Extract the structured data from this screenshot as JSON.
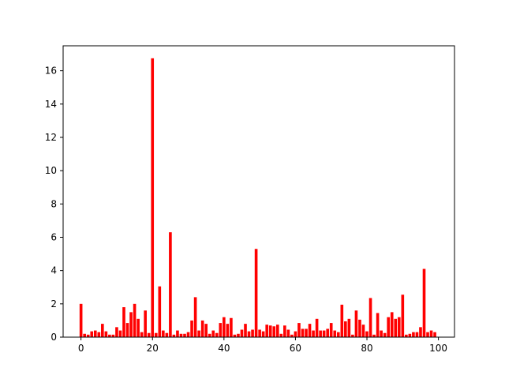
{
  "chart_data": {
    "type": "bar",
    "title": "",
    "xlabel": "",
    "ylabel": "",
    "xlim": [
      -5,
      104.5
    ],
    "ylim": [
      0,
      17.5
    ],
    "x_ticks": [
      0,
      20,
      40,
      60,
      80,
      100
    ],
    "y_ticks": [
      0,
      2,
      4,
      6,
      8,
      10,
      12,
      14,
      16
    ],
    "grid": false,
    "legend": "none",
    "bar_color": "#ff0000",
    "x": [
      0,
      1,
      2,
      3,
      4,
      5,
      6,
      7,
      8,
      9,
      10,
      11,
      12,
      13,
      14,
      15,
      16,
      17,
      18,
      19,
      20,
      21,
      22,
      23,
      24,
      25,
      26,
      27,
      28,
      29,
      30,
      31,
      32,
      33,
      34,
      35,
      36,
      37,
      38,
      39,
      40,
      41,
      42,
      43,
      44,
      45,
      46,
      47,
      48,
      49,
      50,
      51,
      52,
      53,
      54,
      55,
      56,
      57,
      58,
      59,
      60,
      61,
      62,
      63,
      64,
      65,
      66,
      67,
      68,
      69,
      70,
      71,
      72,
      73,
      74,
      75,
      76,
      77,
      78,
      79,
      80,
      81,
      82,
      83,
      84,
      85,
      86,
      87,
      88,
      89,
      90,
      91,
      92,
      93,
      94,
      95,
      96,
      97,
      98,
      99
    ],
    "values": [
      2.0,
      0.2,
      0.15,
      0.35,
      0.4,
      0.3,
      0.8,
      0.35,
      0.15,
      0.15,
      0.6,
      0.4,
      1.8,
      0.85,
      1.5,
      2.0,
      1.1,
      0.3,
      1.6,
      0.25,
      16.75,
      0.25,
      3.05,
      0.4,
      0.25,
      6.3,
      0.15,
      0.4,
      0.2,
      0.2,
      0.3,
      1.0,
      2.4,
      0.4,
      1.0,
      0.8,
      0.2,
      0.4,
      0.25,
      0.85,
      1.2,
      0.8,
      1.15,
      0.15,
      0.2,
      0.45,
      0.8,
      0.35,
      0.45,
      5.3,
      0.45,
      0.35,
      0.75,
      0.7,
      0.65,
      0.75,
      0.2,
      0.7,
      0.45,
      0.15,
      0.35,
      0.85,
      0.5,
      0.5,
      0.8,
      0.4,
      1.1,
      0.4,
      0.4,
      0.5,
      0.85,
      0.4,
      0.3,
      1.95,
      0.95,
      1.1,
      0.15,
      1.6,
      1.05,
      0.75,
      0.35,
      2.35,
      0.15,
      1.45,
      0.4,
      0.25,
      1.2,
      1.5,
      1.1,
      1.2,
      2.55,
      0.15,
      0.2,
      0.3,
      0.3,
      0.6,
      4.1,
      0.3,
      0.4,
      0.3
    ]
  }
}
